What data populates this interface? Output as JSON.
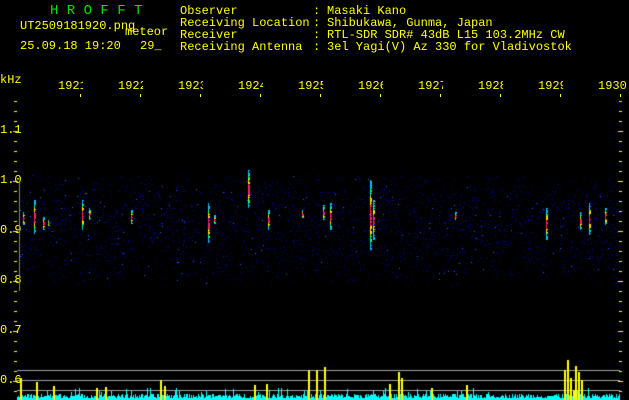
{
  "header": {
    "title": "H R O F F T",
    "filename": "UT2509181920.png",
    "mode": "meteor",
    "datetime": "25.09.18 19:20",
    "count": "29_"
  },
  "info": [
    {
      "label": "Observer",
      "value": "Masaki Kano"
    },
    {
      "label": "Receiving Location",
      "value": "Shibukawa, Gunma, Japan"
    },
    {
      "label": "Receiver",
      "value": "RTL-SDR SDR# 43dB L15 103.2MHz CW"
    },
    {
      "label": "Receiving Antenna",
      "value": "3el Yagi(V) Az 330 for Vladivostok"
    }
  ],
  "colon": ":",
  "axis": {
    "unit": "kHz",
    "x_ticks": [
      "1921",
      "1922",
      "1923",
      "1924",
      "1925",
      "1926",
      "1927",
      "1928",
      "1929",
      "1930"
    ],
    "y_ticks": [
      "1.1",
      "1.0",
      "0.9",
      "0.8",
      "0.7",
      "0.6"
    ]
  },
  "colors": {
    "text": "#ffff00",
    "title": "#00e000",
    "noise": "#0000c0",
    "level": "#00ffff",
    "peak": "#ffff00",
    "threshold": "#a0a0a0"
  }
}
